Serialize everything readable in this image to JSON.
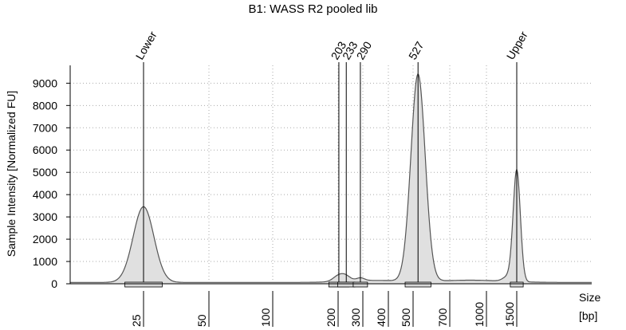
{
  "chart_data": {
    "type": "area",
    "title": "B1: WASS R2 pooled lib",
    "ylabel": "Sample Intensity [Normalized FU]",
    "xlabel_line1": "Size",
    "xlabel_line2": "[bp]",
    "ylim": [
      0,
      9800
    ],
    "y_ticks": [
      0,
      1000,
      2000,
      3000,
      4000,
      5000,
      6000,
      7000,
      8000,
      9000
    ],
    "x_ticks": [
      "25",
      "50",
      "100",
      "200",
      "300",
      "400",
      "500",
      "700",
      "1000",
      "1500"
    ],
    "grid": true,
    "peaks": [
      {
        "label": "Lower",
        "size_bp": 25,
        "height": 3400
      },
      {
        "label": "203",
        "size_bp": 203,
        "height": 270
      },
      {
        "label": "233",
        "size_bp": 233,
        "height": 180
      },
      {
        "label": "290",
        "size_bp": 290,
        "height": 130
      },
      {
        "label": "527",
        "size_bp": 527,
        "height": 9300
      },
      {
        "label": "Upper",
        "size_bp": 1500,
        "height": 5000
      }
    ],
    "baseline": 60
  }
}
